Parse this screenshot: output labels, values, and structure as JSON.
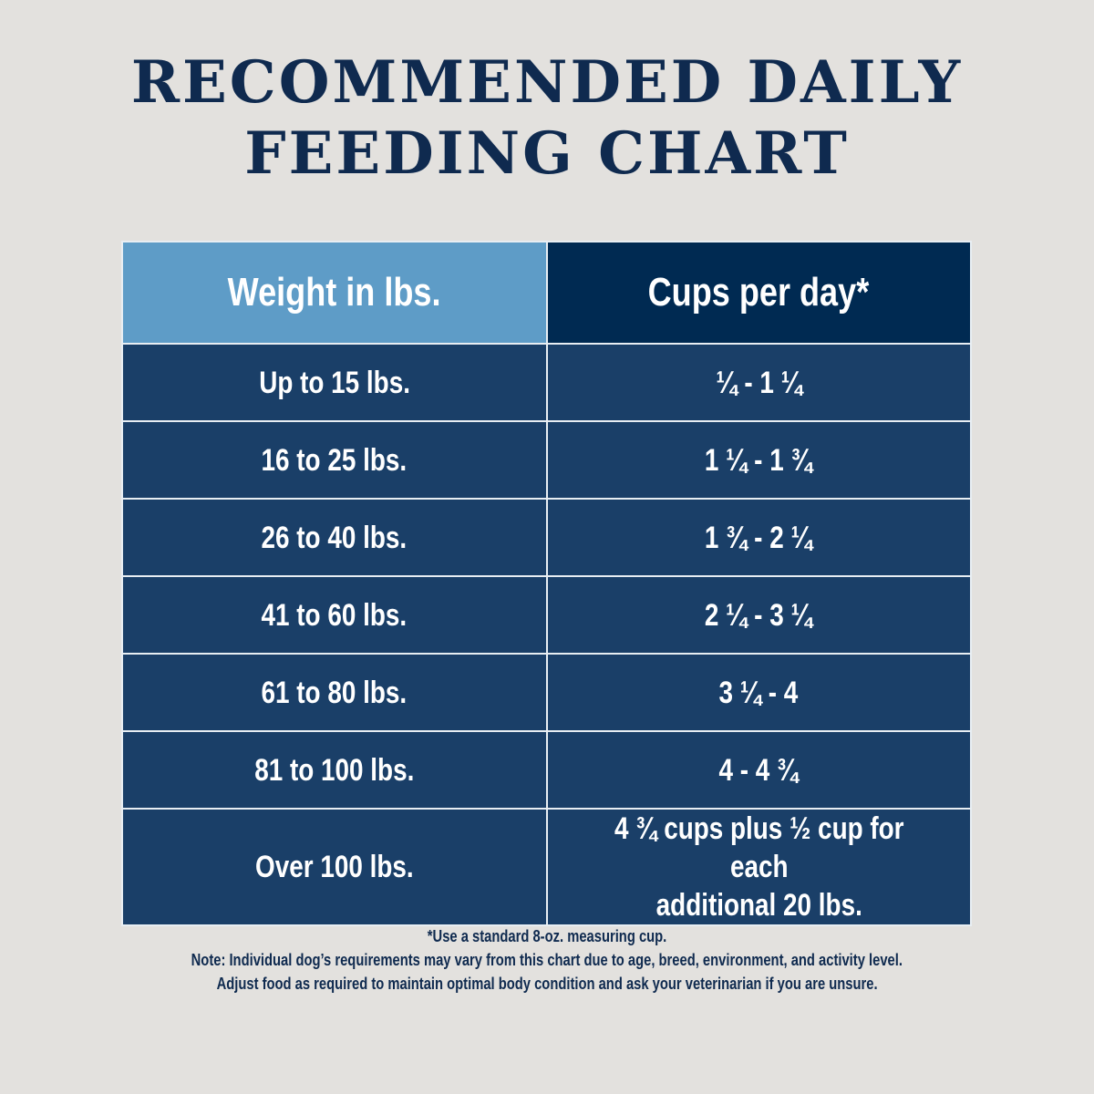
{
  "title": {
    "line1": "RECOMMENDED DAILY",
    "line2": "FEEDING CHART"
  },
  "table": {
    "headers": {
      "weight": "Weight in lbs.",
      "cups": "Cups per day*"
    },
    "rows": [
      {
        "weight": "Up to 15 lbs.",
        "cups": "¼ - 1 ¼"
      },
      {
        "weight": "16 to 25 lbs.",
        "cups": "1 ¼ - 1 ¾"
      },
      {
        "weight": "26 to 40 lbs.",
        "cups": "1 ¾ - 2 ¼"
      },
      {
        "weight": "41 to 60 lbs.",
        "cups": "2 ¼ - 3 ¼"
      },
      {
        "weight": "61 to 80 lbs.",
        "cups": "3 ¼ - 4"
      },
      {
        "weight": "81 to 100 lbs.",
        "cups": "4 - 4 ¾"
      },
      {
        "weight": "Over 100 lbs.",
        "cups_line1": "4 ¾ cups plus ½ cup for each",
        "cups_line2": "additional 20 lbs."
      }
    ]
  },
  "notes": {
    "footnote": "*Use a standard 8-oz. measuring cup.",
    "note": "Note: Individual dog’s requirements may vary from this chart due to age, breed, environment, and activity level.",
    "adjust": "Adjust food as required to maintain optimal body condition and ask your veterinarian if you are unsure."
  },
  "colors": {
    "navy": "#0f2a4f",
    "header_light": "#5e9cc7",
    "header_dark": "#002a52",
    "row": "#1a3f68"
  }
}
